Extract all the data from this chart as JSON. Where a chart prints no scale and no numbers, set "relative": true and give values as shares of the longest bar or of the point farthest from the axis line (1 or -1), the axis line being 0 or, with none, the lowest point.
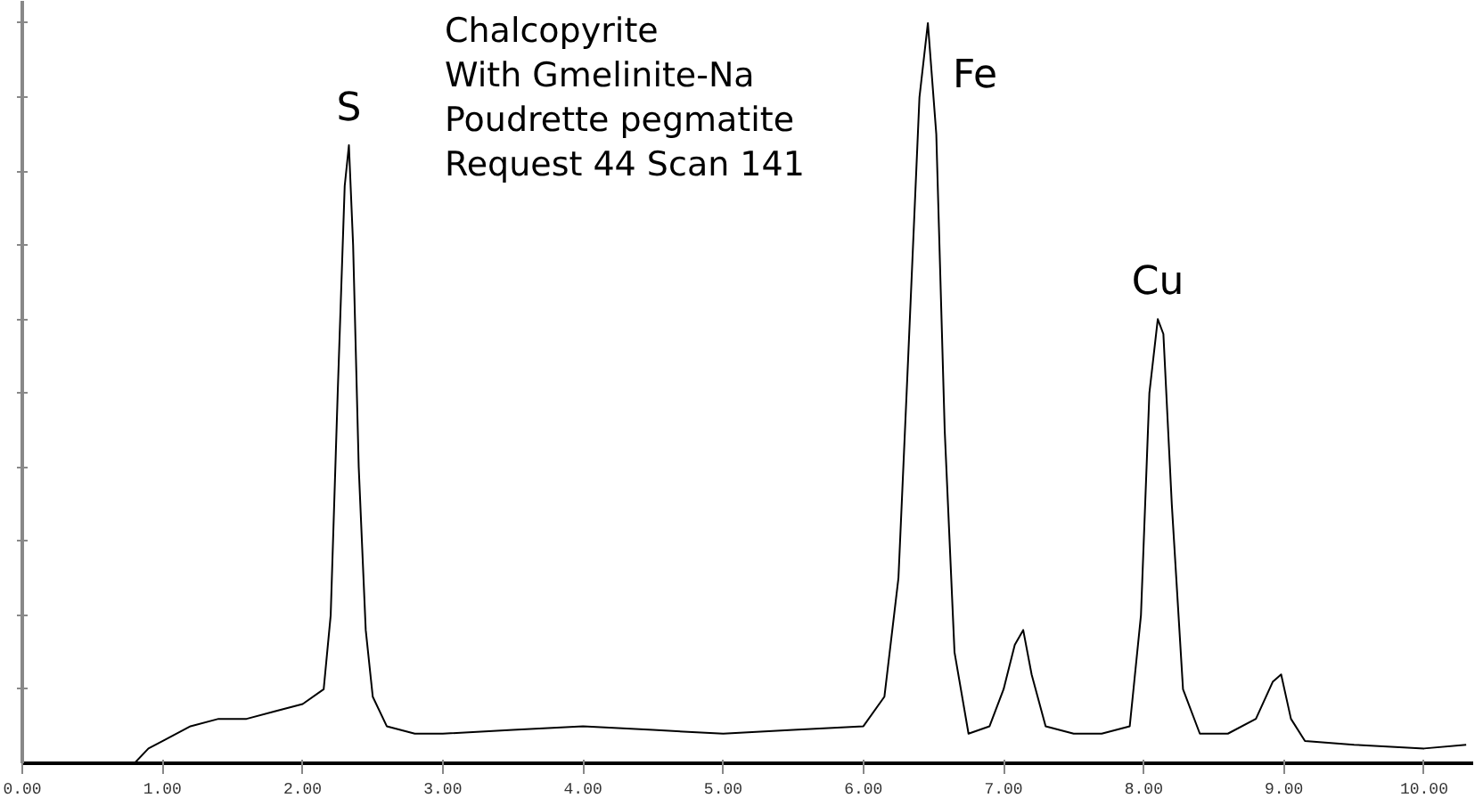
{
  "chart_data": {
    "type": "line",
    "relative": true,
    "annotations": [
      "Chalcopyrite",
      "With Gmelinite-Na",
      "Poudrette pegmatite",
      "Request 44 Scan 141",
      {
        "text": "S",
        "x": 2.33,
        "y": 0.835
      },
      {
        "text": "Fe",
        "x": 6.46,
        "y": 1.0
      },
      {
        "text": "Cu",
        "x": 8.1,
        "y": 0.6
      }
    ],
    "xlim": [
      0,
      10.35
    ],
    "xticks": [
      {
        "value": 0,
        "label": "0.00"
      },
      {
        "value": 1,
        "label": "1.00"
      },
      {
        "value": 2,
        "label": "2.00"
      },
      {
        "value": 3,
        "label": "3.00"
      },
      {
        "value": 4,
        "label": "4.00"
      },
      {
        "value": 5,
        "label": "5.00"
      },
      {
        "value": 6,
        "label": "6.00"
      },
      {
        "value": 7,
        "label": "7.00"
      },
      {
        "value": 8,
        "label": "8.00"
      },
      {
        "value": 9,
        "label": "9.00"
      },
      {
        "value": 10,
        "label": "10.00"
      }
    ],
    "grid": false,
    "series": [
      {
        "color": "#000000",
        "x": [
          0.8,
          0.9,
          1.0,
          1.2,
          1.4,
          1.6,
          1.8,
          2.0,
          2.15,
          2.2,
          2.25,
          2.3,
          2.33,
          2.36,
          2.4,
          2.45,
          2.5,
          2.6,
          2.8,
          3.0,
          3.5,
          4.0,
          4.5,
          5.0,
          5.5,
          6.0,
          6.15,
          6.25,
          6.32,
          6.4,
          6.46,
          6.52,
          6.58,
          6.65,
          6.75,
          6.9,
          7.0,
          7.08,
          7.14,
          7.2,
          7.3,
          7.5,
          7.7,
          7.9,
          7.98,
          8.04,
          8.1,
          8.14,
          8.2,
          8.28,
          8.4,
          8.6,
          8.8,
          8.92,
          8.98,
          9.05,
          9.15,
          9.5,
          10.0,
          10.3
        ],
        "values": [
          0.0,
          0.02,
          0.03,
          0.05,
          0.06,
          0.06,
          0.07,
          0.08,
          0.1,
          0.2,
          0.5,
          0.78,
          0.835,
          0.7,
          0.4,
          0.18,
          0.09,
          0.05,
          0.04,
          0.04,
          0.045,
          0.05,
          0.045,
          0.04,
          0.045,
          0.05,
          0.09,
          0.25,
          0.55,
          0.9,
          1.0,
          0.85,
          0.45,
          0.15,
          0.04,
          0.05,
          0.1,
          0.16,
          0.18,
          0.12,
          0.05,
          0.04,
          0.04,
          0.05,
          0.2,
          0.5,
          0.6,
          0.58,
          0.35,
          0.1,
          0.04,
          0.04,
          0.06,
          0.11,
          0.12,
          0.06,
          0.03,
          0.025,
          0.02,
          0.025
        ]
      }
    ]
  }
}
